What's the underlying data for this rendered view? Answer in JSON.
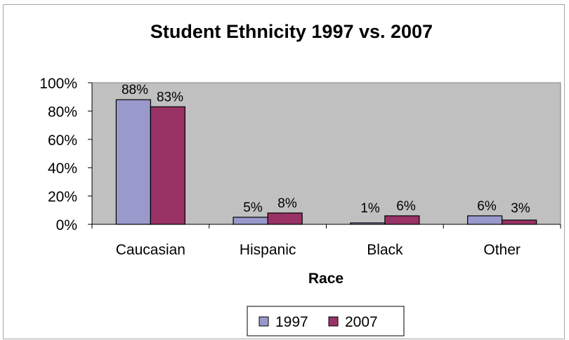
{
  "chart_data": {
    "type": "bar",
    "title": "Student Ethnicity 1997 vs. 2007",
    "xlabel": "Race",
    "ylabel": "",
    "categories": [
      "Caucasian",
      "Hispanic",
      "Black",
      "Other"
    ],
    "series": [
      {
        "name": "1997",
        "values": [
          88,
          5,
          1,
          6
        ],
        "labels": [
          "88%",
          "5%",
          "1%",
          "6%"
        ],
        "color": "#9999cc"
      },
      {
        "name": "2007",
        "values": [
          83,
          8,
          6,
          3
        ],
        "labels": [
          "83%",
          "8%",
          "6%",
          "3%"
        ],
        "color": "#993366"
      }
    ],
    "ylim": [
      0,
      100
    ],
    "yticks": [
      0,
      20,
      40,
      60,
      80,
      100
    ],
    "ytick_labels": [
      "0%",
      "20%",
      "40%",
      "60%",
      "80%",
      "100%"
    ],
    "grid": false,
    "plot_background": "#c0c0c0",
    "legend_position": "bottom"
  }
}
